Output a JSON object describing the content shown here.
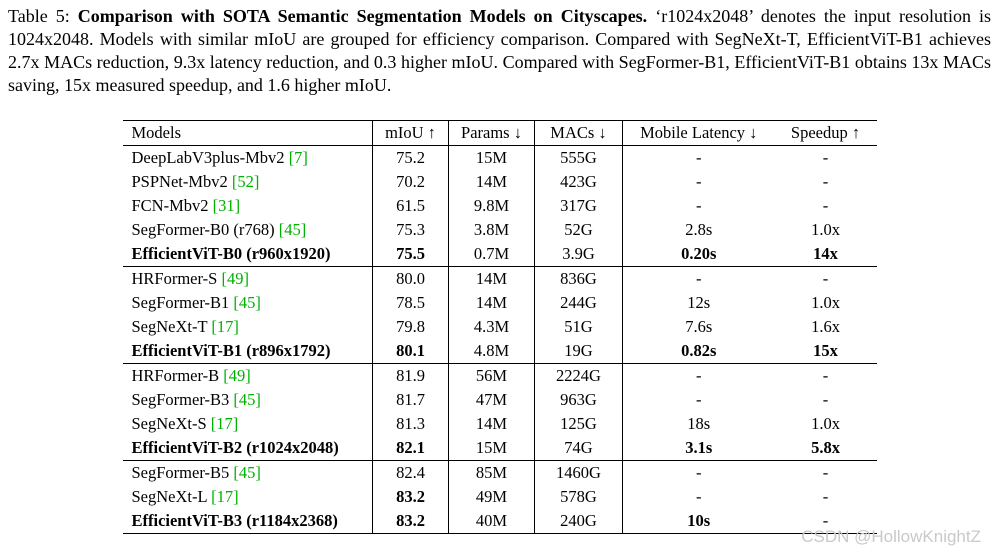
{
  "caption": {
    "label": "Table 5: ",
    "title": "Comparison with SOTA Semantic Segmentation Models on Cityscapes.",
    "body": " ‘r1024x2048’ denotes the input resolution is 1024x2048. Models with similar mIoU are grouped for efficiency comparison. Compared with SegNeXt-T, EfficientViT-B1 achieves 2.7x MACs reduction, 9.3x latency reduction, and 0.3 higher mIoU. Compared with SegFormer-B1, EfficientViT-B1 obtains 13x MACs saving, 15x measured speedup, and 1.6 higher mIoU."
  },
  "colors": {
    "citation_green": "#00b000",
    "watermark_gray": "#c9c9c9"
  },
  "table": {
    "headers": [
      "Models",
      "mIoU ↑",
      "Params ↓",
      "MACs ↓",
      "Mobile Latency ↓",
      "Speedup ↑"
    ],
    "groups": [
      {
        "rows": [
          {
            "model": "DeepLabV3plus-Mbv2",
            "cite": "[7]",
            "bold": false,
            "cells": [
              {
                "t": "75.2",
                "b": false
              },
              {
                "t": "15M",
                "b": false
              },
              {
                "t": "555G",
                "b": false
              },
              {
                "t": "-",
                "b": false
              },
              {
                "t": "-",
                "b": false
              }
            ]
          },
          {
            "model": "PSPNet-Mbv2",
            "cite": "[52]",
            "bold": false,
            "cells": [
              {
                "t": "70.2",
                "b": false
              },
              {
                "t": "14M",
                "b": false
              },
              {
                "t": "423G",
                "b": false
              },
              {
                "t": "-",
                "b": false
              },
              {
                "t": "-",
                "b": false
              }
            ]
          },
          {
            "model": "FCN-Mbv2",
            "cite": "[31]",
            "bold": false,
            "cells": [
              {
                "t": "61.5",
                "b": false
              },
              {
                "t": "9.8M",
                "b": false
              },
              {
                "t": "317G",
                "b": false
              },
              {
                "t": "-",
                "b": false
              },
              {
                "t": "-",
                "b": false
              }
            ]
          },
          {
            "model": "SegFormer-B0 (r768)",
            "cite": "[45]",
            "bold": false,
            "cells": [
              {
                "t": "75.3",
                "b": false
              },
              {
                "t": "3.8M",
                "b": false
              },
              {
                "t": "52G",
                "b": false
              },
              {
                "t": "2.8s",
                "b": false
              },
              {
                "t": "1.0x",
                "b": false
              }
            ]
          },
          {
            "model": "EfficientViT-B0 (r960x1920)",
            "cite": "",
            "bold": true,
            "cells": [
              {
                "t": "75.5",
                "b": true
              },
              {
                "t": "0.7M",
                "b": false
              },
              {
                "t": "3.9G",
                "b": false
              },
              {
                "t": "0.20s",
                "b": true
              },
              {
                "t": "14x",
                "b": true
              }
            ]
          }
        ]
      },
      {
        "rows": [
          {
            "model": "HRFormer-S",
            "cite": "[49]",
            "bold": false,
            "cells": [
              {
                "t": "80.0",
                "b": false
              },
              {
                "t": "14M",
                "b": false
              },
              {
                "t": "836G",
                "b": false
              },
              {
                "t": "-",
                "b": false
              },
              {
                "t": "-",
                "b": false
              }
            ]
          },
          {
            "model": "SegFormer-B1",
            "cite": "[45]",
            "bold": false,
            "cells": [
              {
                "t": "78.5",
                "b": false
              },
              {
                "t": "14M",
                "b": false
              },
              {
                "t": "244G",
                "b": false
              },
              {
                "t": "12s",
                "b": false
              },
              {
                "t": "1.0x",
                "b": false
              }
            ]
          },
          {
            "model": "SegNeXt-T",
            "cite": "[17]",
            "bold": false,
            "cells": [
              {
                "t": "79.8",
                "b": false
              },
              {
                "t": "4.3M",
                "b": false
              },
              {
                "t": "51G",
                "b": false
              },
              {
                "t": "7.6s",
                "b": false
              },
              {
                "t": "1.6x",
                "b": false
              }
            ]
          },
          {
            "model": "EfficientViT-B1 (r896x1792)",
            "cite": "",
            "bold": true,
            "cells": [
              {
                "t": "80.1",
                "b": true
              },
              {
                "t": "4.8M",
                "b": false
              },
              {
                "t": "19G",
                "b": false
              },
              {
                "t": "0.82s",
                "b": true
              },
              {
                "t": "15x",
                "b": true
              }
            ]
          }
        ]
      },
      {
        "rows": [
          {
            "model": "HRFormer-B",
            "cite": "[49]",
            "bold": false,
            "cells": [
              {
                "t": "81.9",
                "b": false
              },
              {
                "t": "56M",
                "b": false
              },
              {
                "t": "2224G",
                "b": false
              },
              {
                "t": "-",
                "b": false
              },
              {
                "t": "-",
                "b": false
              }
            ]
          },
          {
            "model": "SegFormer-B3",
            "cite": "[45]",
            "bold": false,
            "cells": [
              {
                "t": "81.7",
                "b": false
              },
              {
                "t": "47M",
                "b": false
              },
              {
                "t": "963G",
                "b": false
              },
              {
                "t": "-",
                "b": false
              },
              {
                "t": "-",
                "b": false
              }
            ]
          },
          {
            "model": "SegNeXt-S",
            "cite": "[17]",
            "bold": false,
            "cells": [
              {
                "t": "81.3",
                "b": false
              },
              {
                "t": "14M",
                "b": false
              },
              {
                "t": "125G",
                "b": false
              },
              {
                "t": "18s",
                "b": false
              },
              {
                "t": "1.0x",
                "b": false
              }
            ]
          },
          {
            "model": "EfficientViT-B2 (r1024x2048)",
            "cite": "",
            "bold": true,
            "cells": [
              {
                "t": "82.1",
                "b": true
              },
              {
                "t": "15M",
                "b": false
              },
              {
                "t": "74G",
                "b": false
              },
              {
                "t": "3.1s",
                "b": true
              },
              {
                "t": "5.8x",
                "b": true
              }
            ]
          }
        ]
      },
      {
        "rows": [
          {
            "model": "SegFormer-B5",
            "cite": "[45]",
            "bold": false,
            "cells": [
              {
                "t": "82.4",
                "b": false
              },
              {
                "t": "85M",
                "b": false
              },
              {
                "t": "1460G",
                "b": false
              },
              {
                "t": "-",
                "b": false
              },
              {
                "t": "-",
                "b": false
              }
            ]
          },
          {
            "model": "SegNeXt-L",
            "cite": "[17]",
            "bold": false,
            "cells": [
              {
                "t": "83.2",
                "b": true
              },
              {
                "t": "49M",
                "b": false
              },
              {
                "t": "578G",
                "b": false
              },
              {
                "t": "-",
                "b": false
              },
              {
                "t": "-",
                "b": false
              }
            ]
          },
          {
            "model": "EfficientViT-B3 (r1184x2368)",
            "cite": "",
            "bold": true,
            "cells": [
              {
                "t": "83.2",
                "b": true
              },
              {
                "t": "40M",
                "b": false
              },
              {
                "t": "240G",
                "b": false
              },
              {
                "t": "10s",
                "b": true
              },
              {
                "t": "-",
                "b": false
              }
            ]
          }
        ]
      }
    ]
  },
  "watermark": "CSDN @HollowKnightZ"
}
